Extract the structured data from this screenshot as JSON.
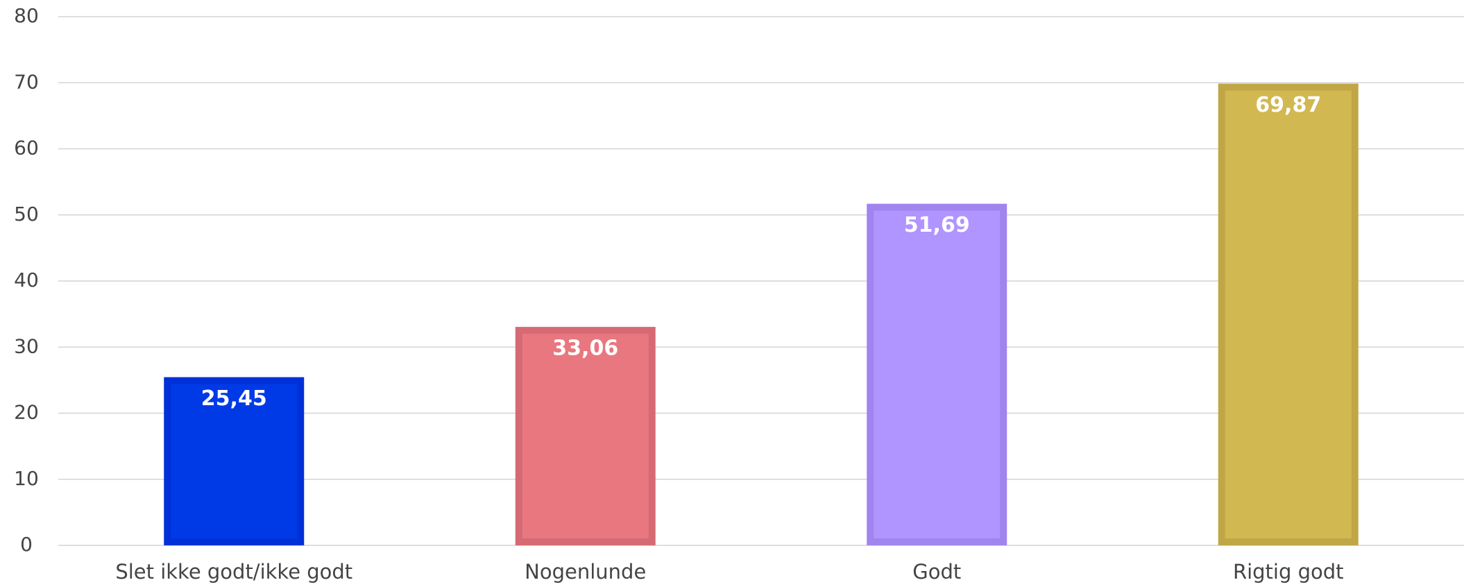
{
  "chart_data": {
    "type": "bar",
    "categories": [
      "Slet ikke godt/ikke godt",
      "Nogenlunde",
      "Godt",
      "Rigtig godt"
    ],
    "values": [
      25.45,
      33.06,
      51.69,
      69.87
    ],
    "value_labels": [
      "25,45",
      "33,06",
      "51,69",
      "69,87"
    ],
    "colors": [
      "#003ae6",
      "#e9777f",
      "#b094ff",
      "#d1b851"
    ],
    "edge_colors": [
      "#0030d8",
      "#d66a74",
      "#a184ee",
      "#c1a646"
    ],
    "ylim": [
      0,
      80
    ],
    "yticks": [
      0,
      10,
      20,
      30,
      40,
      50,
      60,
      70,
      80
    ],
    "grid": true
  }
}
